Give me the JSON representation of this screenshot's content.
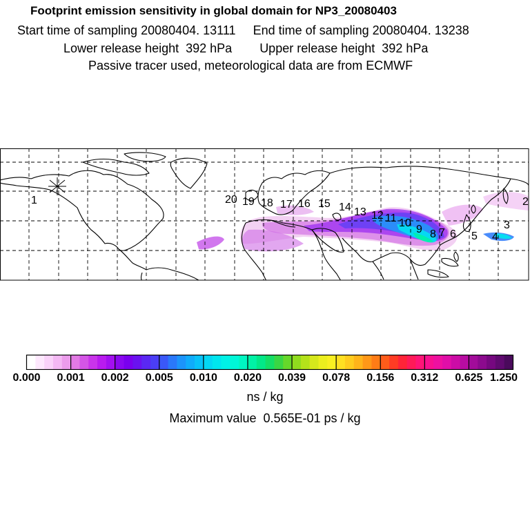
{
  "header": {
    "title": "Footprint emission sensitivity in global domain for NP3_20080403",
    "start_time": "Start time of sampling 20080404. 13111",
    "end_time": "End time of sampling 20080404. 13238",
    "lower_height": "Lower release height  392 hPa",
    "upper_height": "Upper release height  392 hPa",
    "tracer_note": "Passive tracer used, meteorological data are from ECMWF"
  },
  "map": {
    "projection": "global lat-lon",
    "trajectory_labels": [
      "1",
      "2",
      "3",
      "4",
      "5",
      "6",
      "7",
      "8",
      "9",
      "10",
      "11",
      "12",
      "13",
      "14",
      "15",
      "16",
      "17",
      "18",
      "19",
      "20"
    ]
  },
  "colorbar": {
    "tick_labels": [
      "0.000",
      "0.001",
      "0.002",
      "0.005",
      "0.010",
      "0.020",
      "0.039",
      "0.078",
      "0.156",
      "0.312",
      "0.625",
      "1.250"
    ],
    "colors": [
      "#ffffff",
      "#fde8fd",
      "#f9d2f9",
      "#f3b8f3",
      "#eb9ceb",
      "#e27ae4",
      "#d455e6",
      "#c934ea",
      "#b91bef",
      "#a30ff1",
      "#8a08f0",
      "#7a00ee",
      "#6a12f0",
      "#5a28f3",
      "#4b3ef6",
      "#3a58f8",
      "#2a78fa",
      "#1c94fb",
      "#10acfb",
      "#08c2f9",
      "#04d6f4",
      "#00e6ee",
      "#00f2e6",
      "#00f7d8",
      "#00f7c2",
      "#00f2a6",
      "#02e888",
      "#14de66",
      "#3ad644",
      "#66d82a",
      "#90dc1e",
      "#b4e21a",
      "#d6e81c",
      "#ecef1e",
      "#f9f022",
      "#ffe022",
      "#ffcc1e",
      "#ffb41a",
      "#ff9818",
      "#ff7c16",
      "#ff5c1a",
      "#ff3c24",
      "#ff2438",
      "#ff1a58",
      "#ff1478",
      "#f81090",
      "#ee10a0",
      "#e00ea8",
      "#cc0ca6",
      "#b80ca2",
      "#a20c9a",
      "#8c0a8e",
      "#760880",
      "#600a70",
      "#4a0a5c"
    ],
    "unit": "ns / kg",
    "max_value": "Maximum value  0.565E-01 ps / kg"
  }
}
